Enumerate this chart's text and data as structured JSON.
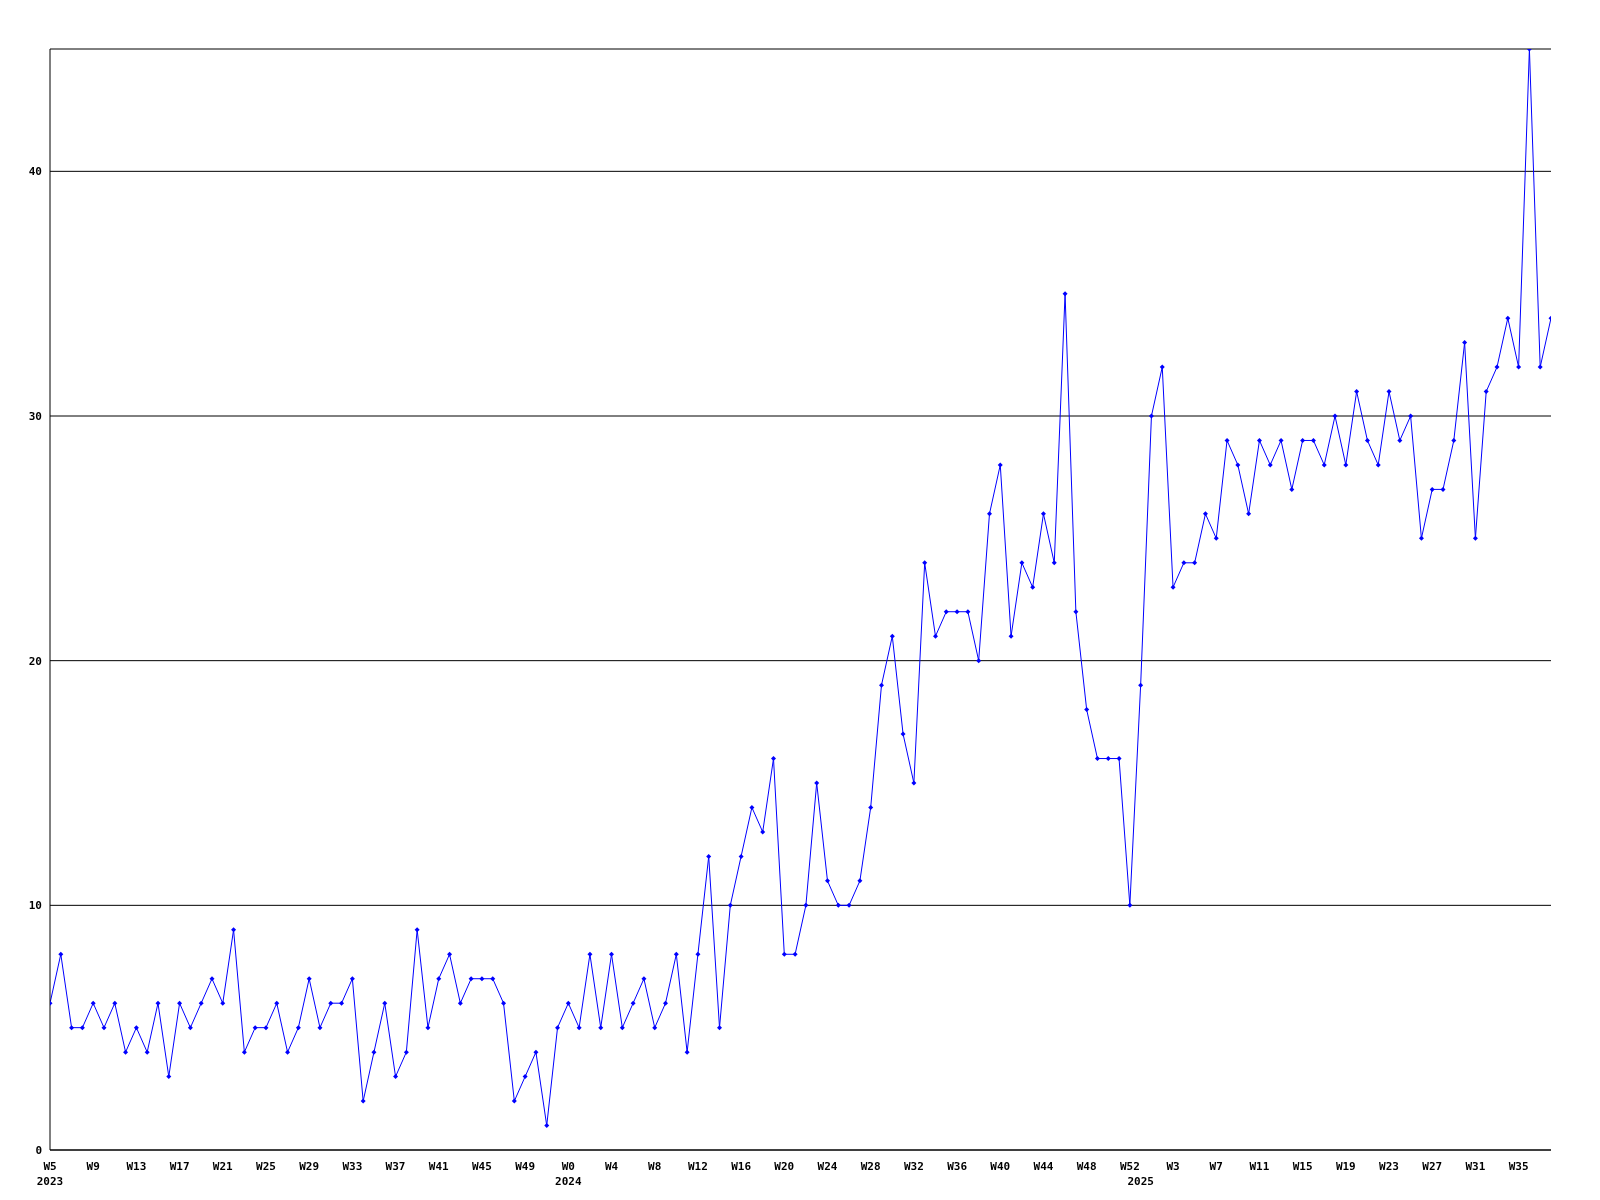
{
  "chart_data": {
    "type": "line",
    "categories": [
      "W5\n2023",
      null,
      null,
      null,
      "W9",
      null,
      null,
      null,
      "W13",
      null,
      null,
      null,
      "W17",
      null,
      null,
      null,
      "W21",
      null,
      null,
      null,
      "W25",
      null,
      null,
      null,
      "W29",
      null,
      null,
      null,
      "W33",
      null,
      null,
      null,
      "W37",
      null,
      null,
      null,
      "W41",
      null,
      null,
      null,
      "W45",
      null,
      null,
      null,
      "W49",
      null,
      null,
      null,
      "W0\n2024",
      null,
      null,
      null,
      "W4",
      null,
      null,
      null,
      "W8",
      null,
      null,
      null,
      "W12",
      null,
      null,
      null,
      "W16",
      null,
      null,
      null,
      "W20",
      null,
      null,
      null,
      "W24",
      null,
      null,
      null,
      "W28",
      null,
      null,
      null,
      "W32",
      null,
      null,
      null,
      "W36",
      null,
      null,
      null,
      "W40",
      null,
      null,
      null,
      "W44",
      null,
      null,
      null,
      "W48",
      null,
      null,
      null,
      "W52",
      "\n2025",
      null,
      null,
      "W3",
      null,
      null,
      null,
      "W7",
      null,
      null,
      null,
      "W11",
      null,
      null,
      null,
      "W15",
      null,
      null,
      null,
      "W19",
      null,
      null,
      null,
      "W23",
      null,
      null,
      null,
      "W27",
      null,
      null,
      null,
      "W31",
      null,
      null,
      null,
      "W35",
      null,
      null,
      null
    ],
    "values": [
      6,
      8,
      5,
      5,
      6,
      5,
      6,
      4,
      5,
      4,
      6,
      3,
      6,
      5,
      6,
      7,
      6,
      9,
      4,
      5,
      5,
      6,
      4,
      5,
      7,
      5,
      6,
      6,
      7,
      2,
      4,
      6,
      3,
      4,
      9,
      5,
      7,
      8,
      6,
      7,
      7,
      7,
      6,
      2,
      3,
      4,
      1,
      5,
      6,
      5,
      8,
      5,
      8,
      5,
      6,
      7,
      5,
      6,
      8,
      4,
      8,
      12,
      5,
      10,
      12,
      14,
      13,
      16,
      8,
      8,
      10,
      15,
      11,
      10,
      10,
      11,
      14,
      19,
      21,
      17,
      15,
      24,
      21,
      22,
      22,
      22,
      20,
      26,
      28,
      21,
      24,
      23,
      26,
      24,
      35,
      22,
      18,
      16,
      16,
      16,
      10,
      19,
      30,
      32,
      23,
      24,
      24,
      26,
      25,
      29,
      28,
      26,
      29,
      28,
      29,
      27,
      29,
      29,
      28,
      30,
      28,
      31,
      29,
      28,
      31,
      29,
      30,
      25,
      27,
      27,
      29,
      33,
      25,
      31,
      32,
      34,
      32,
      45,
      32,
      34
    ],
    "color": "#0000ff",
    "ylim": [
      0,
      45
    ],
    "yticks": [
      0,
      10,
      20,
      30,
      40
    ],
    "grid": "y",
    "marker": "diamond",
    "line_style": "solid"
  }
}
